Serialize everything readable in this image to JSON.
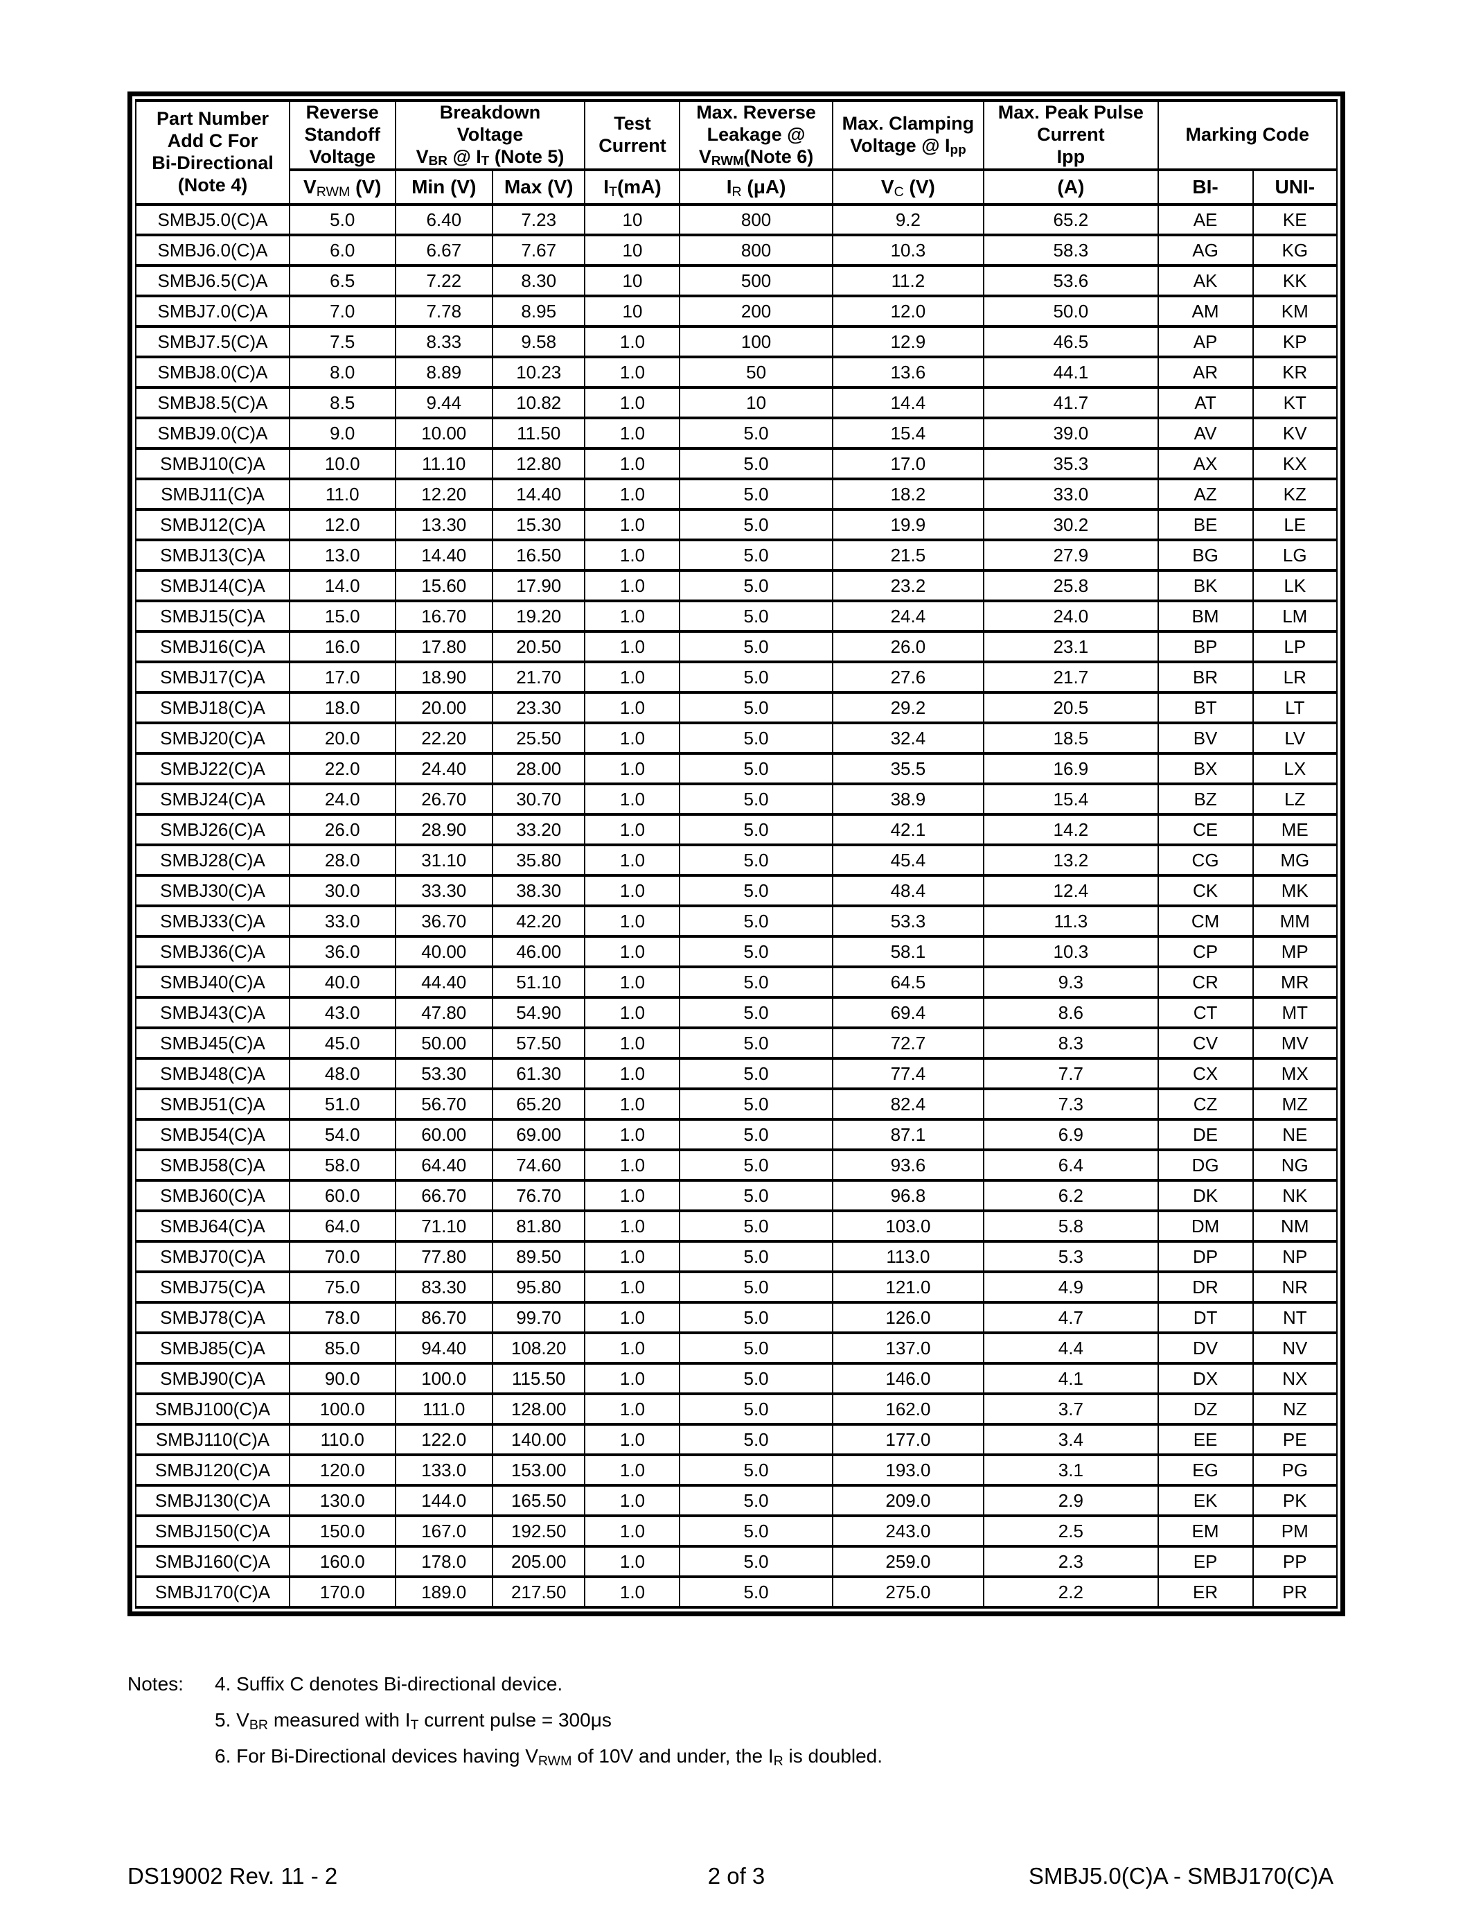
{
  "table": {
    "header": {
      "part_number": "Part Number\nAdd C For\nBi-Directional\n(Note 4)",
      "reverse_standoff": "Reverse\nStandoff\nVoltage",
      "breakdown": "Breakdown\nVoltage\nV_{BR} @ I_{T} (Note 5)",
      "test_current": "Test\nCurrent",
      "max_reverse_leakage": "Max. Reverse\nLeakage @\nV_{RWM}(Note 6)",
      "max_clamping": "Max. Clamping\nVoltage @ I_{pp}",
      "max_peak_pulse": "Max. Peak Pulse\nCurrent\nIpp",
      "marking_code": "Marking Code",
      "units": [
        "V_{RWM} (V)",
        "Min (V)",
        "Max (V)",
        "I_{T}(mA)",
        "I_{R} (μA)",
        "V_{C} (V)",
        "(A)",
        "BI-",
        "UNI-"
      ]
    },
    "column_keys": [
      "part-number",
      "vrwm",
      "min-v",
      "max-v",
      "it-ma",
      "ir-ua",
      "vc-v",
      "ipp-a",
      "marking-bi",
      "marking-uni"
    ],
    "rows": [
      [
        "SMBJ5.0(C)A",
        "5.0",
        "6.40",
        "7.23",
        "10",
        "800",
        "9.2",
        "65.2",
        "AE",
        "KE"
      ],
      [
        "SMBJ6.0(C)A",
        "6.0",
        "6.67",
        "7.67",
        "10",
        "800",
        "10.3",
        "58.3",
        "AG",
        "KG"
      ],
      [
        "SMBJ6.5(C)A",
        "6.5",
        "7.22",
        "8.30",
        "10",
        "500",
        "11.2",
        "53.6",
        "AK",
        "KK"
      ],
      [
        "SMBJ7.0(C)A",
        "7.0",
        "7.78",
        "8.95",
        "10",
        "200",
        "12.0",
        "50.0",
        "AM",
        "KM"
      ],
      [
        "SMBJ7.5(C)A",
        "7.5",
        "8.33",
        "9.58",
        "1.0",
        "100",
        "12.9",
        "46.5",
        "AP",
        "KP"
      ],
      [
        "SMBJ8.0(C)A",
        "8.0",
        "8.89",
        "10.23",
        "1.0",
        "50",
        "13.6",
        "44.1",
        "AR",
        "KR"
      ],
      [
        "SMBJ8.5(C)A",
        "8.5",
        "9.44",
        "10.82",
        "1.0",
        "10",
        "14.4",
        "41.7",
        "AT",
        "KT"
      ],
      [
        "SMBJ9.0(C)A",
        "9.0",
        "10.00",
        "11.50",
        "1.0",
        "5.0",
        "15.4",
        "39.0",
        "AV",
        "KV"
      ],
      [
        "SMBJ10(C)A",
        "10.0",
        "11.10",
        "12.80",
        "1.0",
        "5.0",
        "17.0",
        "35.3",
        "AX",
        "KX"
      ],
      [
        "SMBJ11(C)A",
        "11.0",
        "12.20",
        "14.40",
        "1.0",
        "5.0",
        "18.2",
        "33.0",
        "AZ",
        "KZ"
      ],
      [
        "SMBJ12(C)A",
        "12.0",
        "13.30",
        "15.30",
        "1.0",
        "5.0",
        "19.9",
        "30.2",
        "BE",
        "LE"
      ],
      [
        "SMBJ13(C)A",
        "13.0",
        "14.40",
        "16.50",
        "1.0",
        "5.0",
        "21.5",
        "27.9",
        "BG",
        "LG"
      ],
      [
        "SMBJ14(C)A",
        "14.0",
        "15.60",
        "17.90",
        "1.0",
        "5.0",
        "23.2",
        "25.8",
        "BK",
        "LK"
      ],
      [
        "SMBJ15(C)A",
        "15.0",
        "16.70",
        "19.20",
        "1.0",
        "5.0",
        "24.4",
        "24.0",
        "BM",
        "LM"
      ],
      [
        "SMBJ16(C)A",
        "16.0",
        "17.80",
        "20.50",
        "1.0",
        "5.0",
        "26.0",
        "23.1",
        "BP",
        "LP"
      ],
      [
        "SMBJ17(C)A",
        "17.0",
        "18.90",
        "21.70",
        "1.0",
        "5.0",
        "27.6",
        "21.7",
        "BR",
        "LR"
      ],
      [
        "SMBJ18(C)A",
        "18.0",
        "20.00",
        "23.30",
        "1.0",
        "5.0",
        "29.2",
        "20.5",
        "BT",
        "LT"
      ],
      [
        "SMBJ20(C)A",
        "20.0",
        "22.20",
        "25.50",
        "1.0",
        "5.0",
        "32.4",
        "18.5",
        "BV",
        "LV"
      ],
      [
        "SMBJ22(C)A",
        "22.0",
        "24.40",
        "28.00",
        "1.0",
        "5.0",
        "35.5",
        "16.9",
        "BX",
        "LX"
      ],
      [
        "SMBJ24(C)A",
        "24.0",
        "26.70",
        "30.70",
        "1.0",
        "5.0",
        "38.9",
        "15.4",
        "BZ",
        "LZ"
      ],
      [
        "SMBJ26(C)A",
        "26.0",
        "28.90",
        "33.20",
        "1.0",
        "5.0",
        "42.1",
        "14.2",
        "CE",
        "ME"
      ],
      [
        "SMBJ28(C)A",
        "28.0",
        "31.10",
        "35.80",
        "1.0",
        "5.0",
        "45.4",
        "13.2",
        "CG",
        "MG"
      ],
      [
        "SMBJ30(C)A",
        "30.0",
        "33.30",
        "38.30",
        "1.0",
        "5.0",
        "48.4",
        "12.4",
        "CK",
        "MK"
      ],
      [
        "SMBJ33(C)A",
        "33.0",
        "36.70",
        "42.20",
        "1.0",
        "5.0",
        "53.3",
        "11.3",
        "CM",
        "MM"
      ],
      [
        "SMBJ36(C)A",
        "36.0",
        "40.00",
        "46.00",
        "1.0",
        "5.0",
        "58.1",
        "10.3",
        "CP",
        "MP"
      ],
      [
        "SMBJ40(C)A",
        "40.0",
        "44.40",
        "51.10",
        "1.0",
        "5.0",
        "64.5",
        "9.3",
        "CR",
        "MR"
      ],
      [
        "SMBJ43(C)A",
        "43.0",
        "47.80",
        "54.90",
        "1.0",
        "5.0",
        "69.4",
        "8.6",
        "CT",
        "MT"
      ],
      [
        "SMBJ45(C)A",
        "45.0",
        "50.00",
        "57.50",
        "1.0",
        "5.0",
        "72.7",
        "8.3",
        "CV",
        "MV"
      ],
      [
        "SMBJ48(C)A",
        "48.0",
        "53.30",
        "61.30",
        "1.0",
        "5.0",
        "77.4",
        "7.7",
        "CX",
        "MX"
      ],
      [
        "SMBJ51(C)A",
        "51.0",
        "56.70",
        "65.20",
        "1.0",
        "5.0",
        "82.4",
        "7.3",
        "CZ",
        "MZ"
      ],
      [
        "SMBJ54(C)A",
        "54.0",
        "60.00",
        "69.00",
        "1.0",
        "5.0",
        "87.1",
        "6.9",
        "DE",
        "NE"
      ],
      [
        "SMBJ58(C)A",
        "58.0",
        "64.40",
        "74.60",
        "1.0",
        "5.0",
        "93.6",
        "6.4",
        "DG",
        "NG"
      ],
      [
        "SMBJ60(C)A",
        "60.0",
        "66.70",
        "76.70",
        "1.0",
        "5.0",
        "96.8",
        "6.2",
        "DK",
        "NK"
      ],
      [
        "SMBJ64(C)A",
        "64.0",
        "71.10",
        "81.80",
        "1.0",
        "5.0",
        "103.0",
        "5.8",
        "DM",
        "NM"
      ],
      [
        "SMBJ70(C)A",
        "70.0",
        "77.80",
        "89.50",
        "1.0",
        "5.0",
        "113.0",
        "5.3",
        "DP",
        "NP"
      ],
      [
        "SMBJ75(C)A",
        "75.0",
        "83.30",
        "95.80",
        "1.0",
        "5.0",
        "121.0",
        "4.9",
        "DR",
        "NR"
      ],
      [
        "SMBJ78(C)A",
        "78.0",
        "86.70",
        "99.70",
        "1.0",
        "5.0",
        "126.0",
        "4.7",
        "DT",
        "NT"
      ],
      [
        "SMBJ85(C)A",
        "85.0",
        "94.40",
        "108.20",
        "1.0",
        "5.0",
        "137.0",
        "4.4",
        "DV",
        "NV"
      ],
      [
        "SMBJ90(C)A",
        "90.0",
        "100.0",
        "115.50",
        "1.0",
        "5.0",
        "146.0",
        "4.1",
        "DX",
        "NX"
      ],
      [
        "SMBJ100(C)A",
        "100.0",
        "111.0",
        "128.00",
        "1.0",
        "5.0",
        "162.0",
        "3.7",
        "DZ",
        "NZ"
      ],
      [
        "SMBJ110(C)A",
        "110.0",
        "122.0",
        "140.00",
        "1.0",
        "5.0",
        "177.0",
        "3.4",
        "EE",
        "PE"
      ],
      [
        "SMBJ120(C)A",
        "120.0",
        "133.0",
        "153.00",
        "1.0",
        "5.0",
        "193.0",
        "3.1",
        "EG",
        "PG"
      ],
      [
        "SMBJ130(C)A",
        "130.0",
        "144.0",
        "165.50",
        "1.0",
        "5.0",
        "209.0",
        "2.9",
        "EK",
        "PK"
      ],
      [
        "SMBJ150(C)A",
        "150.0",
        "167.0",
        "192.50",
        "1.0",
        "5.0",
        "243.0",
        "2.5",
        "EM",
        "PM"
      ],
      [
        "SMBJ160(C)A",
        "160.0",
        "178.0",
        "205.00",
        "1.0",
        "5.0",
        "259.0",
        "2.3",
        "EP",
        "PP"
      ],
      [
        "SMBJ170(C)A",
        "170.0",
        "189.0",
        "217.50",
        "1.0",
        "5.0",
        "275.0",
        "2.2",
        "ER",
        "PR"
      ]
    ]
  },
  "notes": {
    "label": "Notes:",
    "items": [
      "4. Suffix C denotes Bi-directional device.",
      "5. V_{BR} measured with I_{T} current pulse = 300μs",
      "6. For Bi-Directional devices having V_{RWM} of 10V and under, the I_{R} is doubled."
    ]
  },
  "footer": {
    "left": "DS19002 Rev. 11 - 2",
    "center": "2 of 3",
    "right": "SMBJ5.0(C)A - SMBJ170(C)A"
  }
}
